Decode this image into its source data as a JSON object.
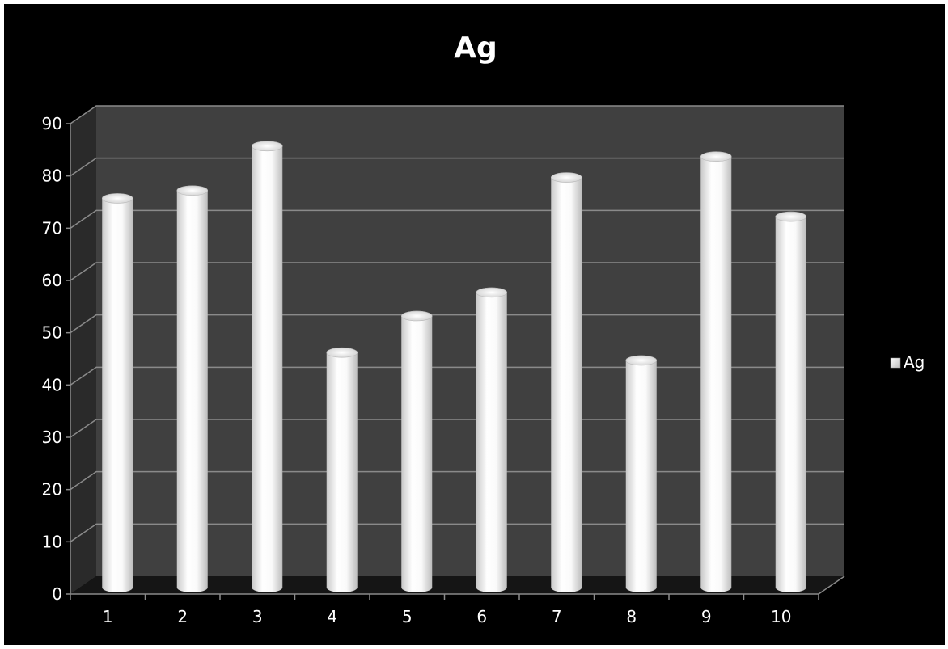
{
  "chart_data": {
    "type": "bar",
    "style": "3d-cylinder",
    "title": "Ag",
    "categories": [
      "1",
      "2",
      "3",
      "4",
      "5",
      "6",
      "7",
      "8",
      "9",
      "10"
    ],
    "series": [
      {
        "name": "Ag",
        "values": [
          74,
          75.5,
          84,
          44.5,
          51.5,
          56,
          78,
          43,
          82,
          70.5
        ]
      }
    ],
    "xlabel": "",
    "ylabel": "",
    "ylim": [
      0,
      90
    ],
    "yticks": [
      "0",
      "10",
      "20",
      "30",
      "40",
      "50",
      "60",
      "70",
      "80",
      "90"
    ],
    "grid": true,
    "legend": "right",
    "colors": {
      "frame_background": "#000000",
      "back_wall": "#404040",
      "side_wall": "#2a2a2a",
      "floor": "#151515",
      "gridline": "#8a8a8a",
      "bar": "#ffffff",
      "text": "#ffffff"
    }
  }
}
